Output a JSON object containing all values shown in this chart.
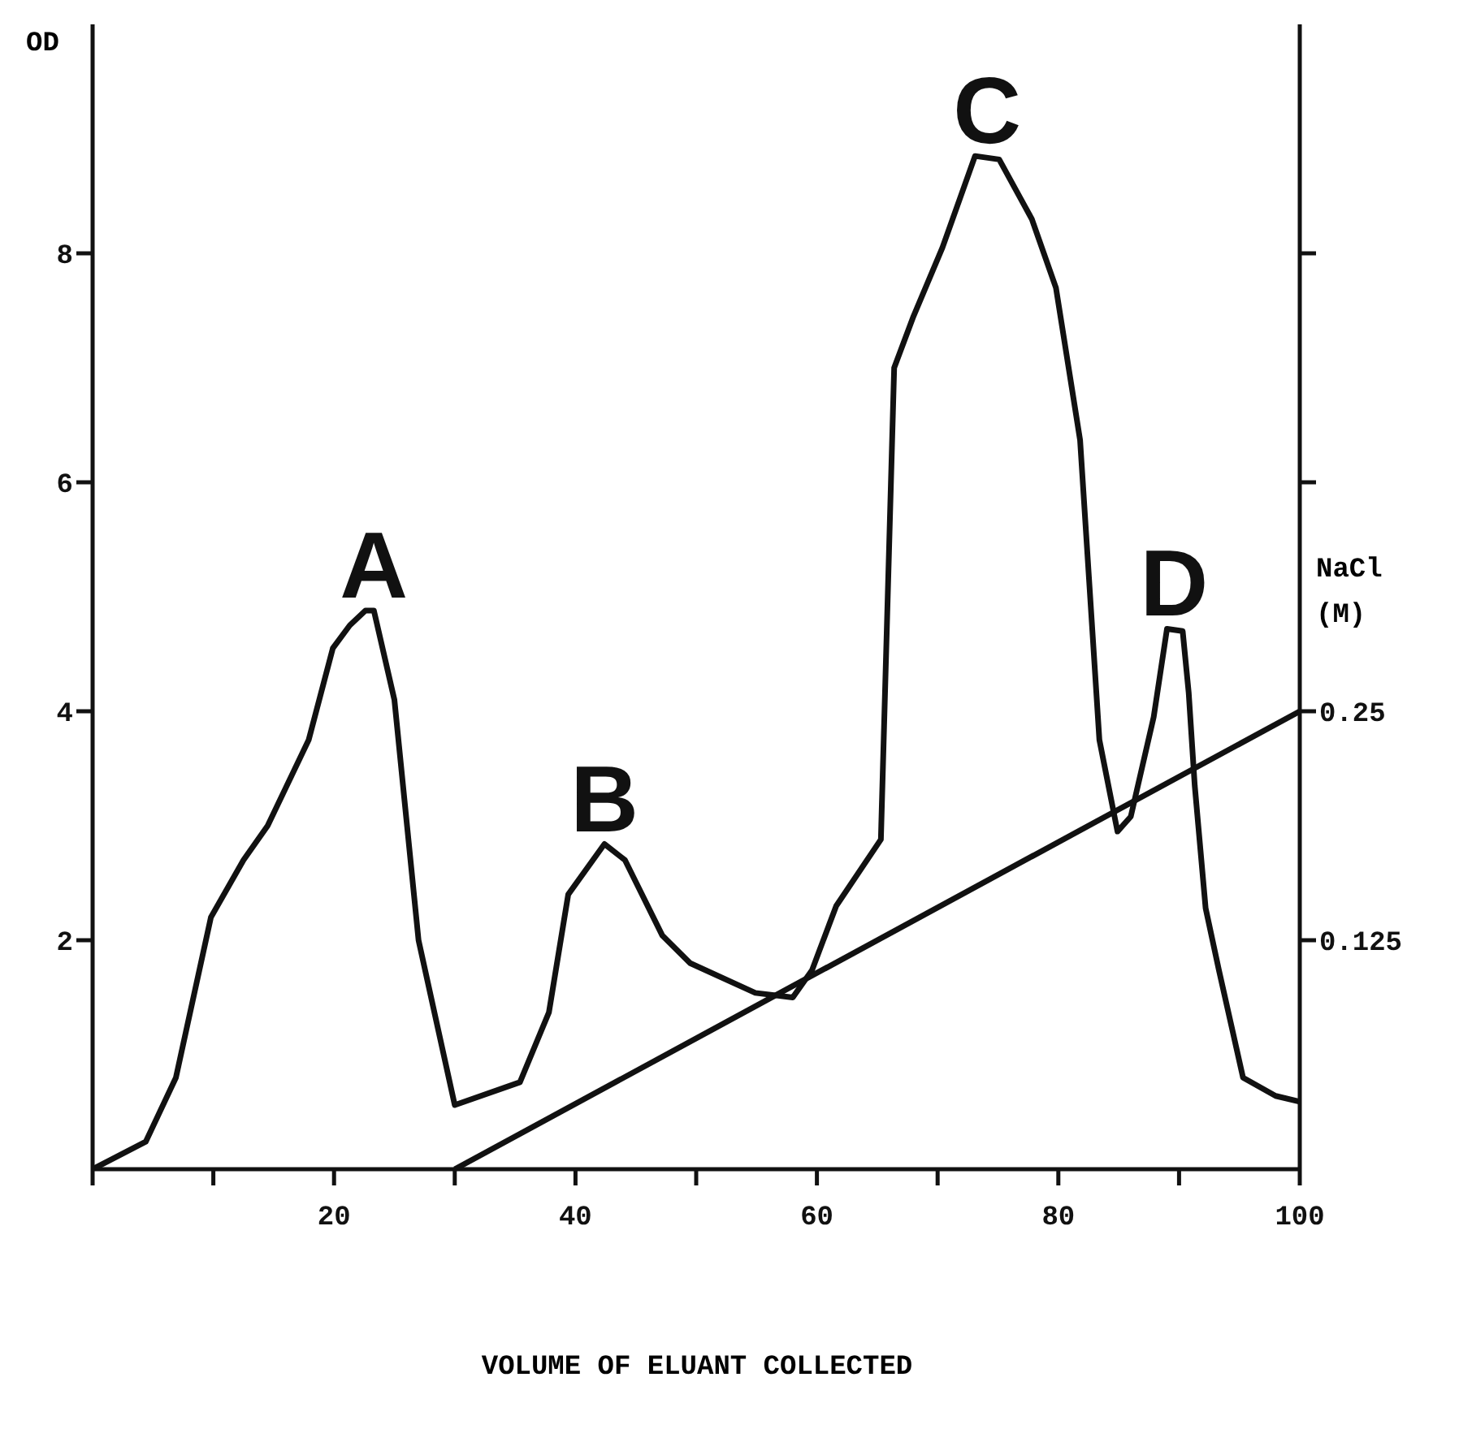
{
  "chart_data": {
    "type": "line",
    "xlabel": "VOLUME OF ELUANT COLLECTED",
    "ylabel": "OD",
    "y2label": "NaCl (M)",
    "series": [
      {
        "color": "#111111",
        "x": [
          0,
          4.4,
          6.9,
          9.8,
          12.5,
          14.5,
          17.9,
          19.9,
          21.3,
          22.6,
          23.3,
          25,
          27,
          30,
          35.4,
          37.8,
          39.4,
          42.4,
          44.1,
          47.2,
          49.5,
          54.9,
          58,
          59.6,
          61.6,
          65.3,
          66.4,
          68,
          70.4,
          73.1,
          75.1,
          77.8,
          79.8,
          81.8,
          83.4,
          84.9,
          86,
          87.9,
          89,
          90.3,
          90.8,
          91.3,
          92.2,
          93.3,
          95.3,
          98,
          100
        ],
        "values": [
          0,
          0.24,
          0.8,
          2.2,
          2.7,
          3.0,
          3.75,
          4.55,
          4.75,
          4.88,
          4.88,
          4.1,
          2.0,
          0.56,
          0.76,
          1.37,
          2.4,
          2.84,
          2.7,
          2.04,
          1.8,
          1.54,
          1.5,
          1.74,
          2.3,
          2.88,
          7.0,
          7.45,
          8.05,
          8.85,
          8.82,
          8.3,
          7.7,
          6.37,
          3.75,
          2.95,
          3.08,
          3.95,
          4.72,
          4.7,
          4.16,
          3.35,
          2.28,
          1.74,
          0.8,
          0.64,
          0.59
        ]
      },
      {
        "color": "#111111",
        "axis": "y2",
        "x": [
          30,
          100
        ],
        "values": [
          0,
          0.25
        ]
      }
    ],
    "annotations": [
      {
        "text": "A",
        "x": 23.3,
        "y": 4.88
      },
      {
        "text": "B",
        "x": 42.4,
        "y": 2.84
      },
      {
        "text": "C",
        "x": 74.1,
        "y": 8.85
      },
      {
        "text": "D",
        "x": 89.6,
        "y": 4.72
      }
    ],
    "xlim": [
      0,
      100
    ],
    "xticks": [
      {
        "value": 0,
        "label": null
      },
      {
        "value": 10,
        "label": null
      },
      20,
      {
        "value": 30,
        "label": null
      },
      40,
      {
        "value": 50,
        "label": null
      },
      60,
      {
        "value": 70,
        "label": null
      },
      80,
      {
        "value": 90,
        "label": null
      },
      100
    ],
    "ylim": [
      0,
      10
    ],
    "yticks": [
      2,
      4,
      6,
      8
    ],
    "y2lim": [
      0,
      0.625
    ],
    "y2ticks": [
      0.125,
      0.25,
      {
        "value": 0.375,
        "label": null
      },
      {
        "value": 0.5,
        "label": null
      }
    ],
    "grid": false,
    "marker": "none",
    "line_style": "solid"
  }
}
